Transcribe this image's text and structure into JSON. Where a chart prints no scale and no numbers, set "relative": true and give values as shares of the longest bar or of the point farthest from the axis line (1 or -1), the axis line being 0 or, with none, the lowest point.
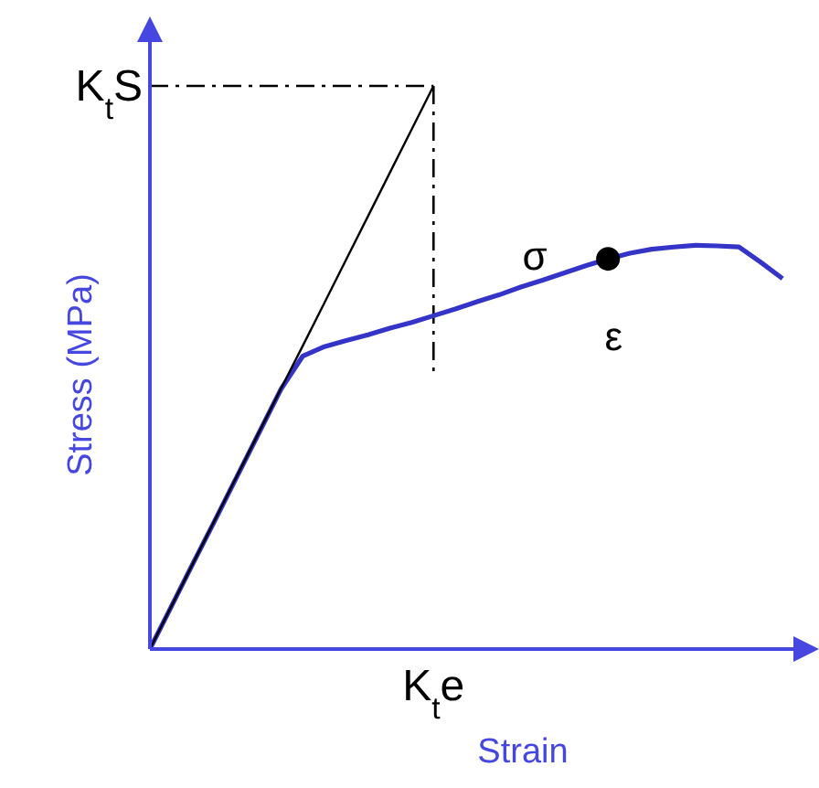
{
  "chart_data": {
    "type": "line",
    "relative": true,
    "xlabel": "Strain",
    "ylabel": "Stress (MPa)",
    "categories": [
      null,
      null,
      null,
      null,
      null,
      null,
      null,
      null,
      null,
      null,
      null,
      null,
      null,
      null,
      null,
      null,
      null,
      null,
      null,
      null,
      null,
      null,
      null,
      null,
      null,
      null,
      null,
      null,
      null,
      null
    ],
    "series": [
      {
        "color": "#000000",
        "values": [
          0,
          0.077,
          0.154,
          0.231,
          0.308,
          0.385,
          0.462,
          0.538,
          0.615,
          0.692,
          0.769,
          0.846,
          0.923,
          1,
          null,
          null,
          null,
          null,
          null,
          null,
          null,
          null,
          null,
          null,
          null,
          null,
          null,
          null,
          null,
          null
        ]
      },
      {
        "color": "#3434c8",
        "values": [
          0,
          0.077,
          0.154,
          0.23,
          0.307,
          0.384,
          0.461,
          0.52,
          0.537,
          0.548,
          0.558,
          0.57,
          0.58,
          0.592,
          0.604,
          0.617,
          0.629,
          0.643,
          0.655,
          0.668,
          0.681,
          0.693,
          0.703,
          0.71,
          0.714,
          0.717,
          0.716,
          0.714,
          0.687,
          0.658
        ]
      }
    ],
    "annotations": [
      "K$_{t}$S",
      "σ",
      "ε",
      "K$_{t}$e"
    ]
  }
}
